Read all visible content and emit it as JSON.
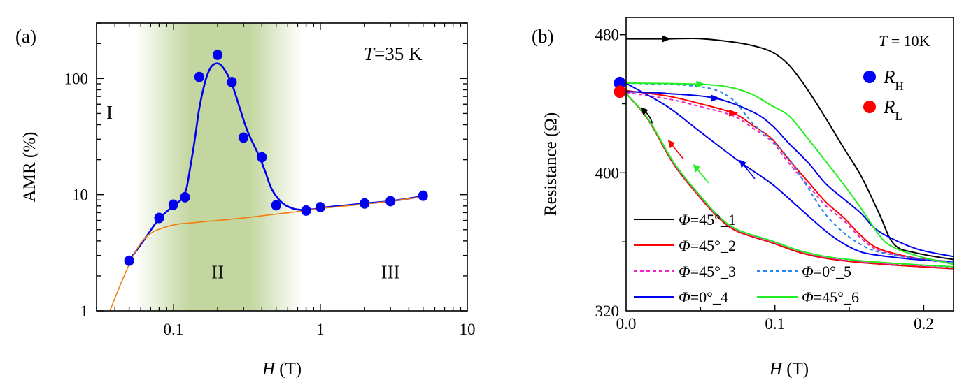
{
  "chart_data": [
    {
      "panel_label": "(a)",
      "type": "scatter",
      "title": "",
      "xlabel_italic": "H",
      "xlabel_unit": " (T)",
      "ylabel": "AMR (%)",
      "xscale": "log",
      "yscale": "log",
      "xlim": [
        0.03,
        10
      ],
      "ylim": [
        1,
        300
      ],
      "x_tick_labels": [
        {
          "value": 0.1,
          "label": "0.1"
        },
        {
          "value": 1,
          "label": "1"
        },
        {
          "value": 10,
          "label": "10"
        }
      ],
      "y_tick_labels": [
        {
          "value": 1,
          "label": "1"
        },
        {
          "value": 10,
          "label": "10"
        },
        {
          "value": 100,
          "label": "100"
        }
      ],
      "annotation": {
        "italic": "T",
        "rest": "=35 K"
      },
      "regions": [
        {
          "label": "I",
          "at": [
            0.035,
            45
          ]
        },
        {
          "label": "II",
          "at": [
            0.2,
            1.9
          ]
        },
        {
          "label": "III",
          "at": [
            3.0,
            1.9
          ]
        }
      ],
      "shaded_band": {
        "color": "#c3d69f",
        "x_fade_in": [
          0.055,
          0.13
        ],
        "x_solid": [
          0.13,
          0.33
        ],
        "x_fade_out": [
          0.33,
          0.75
        ]
      },
      "series": [
        {
          "name": "AMR data",
          "kind": "points",
          "color": "#0000ee",
          "x": [
            0.05,
            0.08,
            0.1,
            0.12,
            0.15,
            0.2,
            0.25,
            0.3,
            0.4,
            0.5,
            0.8,
            1.0,
            2.0,
            3.0,
            5.0
          ],
          "y": [
            2.7,
            6.3,
            8.2,
            9.5,
            103,
            160,
            93,
            31,
            21,
            8.1,
            7.3,
            7.8,
            8.4,
            8.8,
            9.8
          ]
        },
        {
          "name": "AMR fit",
          "kind": "line",
          "color": "#0000ee",
          "x": [
            0.05,
            0.065,
            0.08,
            0.1,
            0.112,
            0.122,
            0.13,
            0.14,
            0.15,
            0.165,
            0.18,
            0.2,
            0.22,
            0.25,
            0.28,
            0.32,
            0.38,
            0.42,
            0.47,
            0.55,
            0.65,
            0.75,
            0.9,
            1.0,
            1.5,
            2.0,
            3.0,
            5.0
          ],
          "y": [
            2.7,
            4.3,
            6.2,
            8.0,
            9.0,
            11,
            17,
            30,
            55,
            95,
            125,
            135,
            122,
            90,
            58,
            35,
            22,
            16,
            11,
            8.5,
            7.6,
            7.4,
            7.5,
            7.7,
            8.1,
            8.4,
            8.8,
            9.7
          ]
        },
        {
          "name": "Background fit",
          "kind": "line",
          "color": "#f07f10",
          "x": [
            0.037,
            0.042,
            0.047,
            0.052,
            0.058,
            0.065,
            0.073,
            0.082,
            0.095,
            0.11,
            0.13,
            0.16,
            0.2,
            0.3,
            0.5,
            0.8,
            1.0,
            2.0,
            3.0,
            5.0
          ],
          "y": [
            1.0,
            1.5,
            2.1,
            2.8,
            3.6,
            4.3,
            4.8,
            5.1,
            5.4,
            5.6,
            5.7,
            5.85,
            6.0,
            6.3,
            6.8,
            7.3,
            7.6,
            8.3,
            8.8,
            9.6
          ]
        }
      ]
    },
    {
      "panel_label": "(b)",
      "type": "line",
      "title": "",
      "xlabel_italic": "H",
      "xlabel_unit": " (T)",
      "ylabel": "Resistance (Ω)",
      "xlim": [
        0.0,
        0.22
      ],
      "ylim": [
        320,
        490
      ],
      "x_tick_labels": [
        {
          "value": 0.0,
          "label": "0.0"
        },
        {
          "value": 0.1,
          "label": "0.1"
        },
        {
          "value": 0.2,
          "label": "0.2"
        }
      ],
      "x_minor_ticks": [
        0.05,
        0.15
      ],
      "y_tick_labels": [
        {
          "value": 320,
          "label": "320"
        },
        {
          "value": 400,
          "label": "400"
        },
        {
          "value": 480,
          "label": "480"
        }
      ],
      "y_minor_ticks": [
        360,
        440
      ],
      "annotation": {
        "italic": "T",
        "rest": " = 10K"
      },
      "markers": [
        {
          "name": "R_H",
          "symbol": "R",
          "subscript": "H",
          "color": "#0000ff",
          "x": 0.0,
          "y": 452
        },
        {
          "name": "R_L",
          "symbol": "R",
          "subscript": "L",
          "color": "#ff0000",
          "x": 0.0,
          "y": 447
        }
      ],
      "legend": {
        "placement": "bottom-left",
        "entries": [
          {
            "label_italic": "Φ",
            "label_rest": "=45°_1",
            "series": "Φ=45°_1"
          },
          {
            "label_italic": "Φ",
            "label_rest": "=45°_2",
            "series": "Φ=45°_2"
          },
          {
            "label_italic": "Φ",
            "label_rest": "=45°_3",
            "series": "Φ=45°_3"
          },
          {
            "label_italic": "Φ",
            "label_rest": "=0°_4",
            "series": "Φ=0°_4"
          },
          {
            "label_italic": "Φ",
            "label_rest": "=0°_5",
            "series": "Φ=0°_5"
          },
          {
            "label_italic": "Φ",
            "label_rest": "=45°_6",
            "series": "Φ=45°_6"
          }
        ]
      },
      "series": [
        {
          "name": "Φ=45°_1",
          "color": "#000000",
          "dash": false,
          "segments": [
            {
              "direction": "forward",
              "x": [
                0.0,
                0.027,
                0.048,
                0.07,
                0.085,
                0.098,
                0.109,
                0.12,
                0.133,
                0.146,
                0.158,
                0.17,
                0.18,
                0.195,
                0.221
              ],
              "y": [
                477.6,
                477.6,
                477.8,
                476.0,
                473.7,
                470.0,
                462.8,
                450.6,
                433.3,
                414.7,
                398.0,
                376.5,
                358.6,
                353.5,
                349.6
              ]
            },
            {
              "direction": "return",
              "x": [
                0.221,
                0.19,
                0.158,
                0.134,
                0.116,
                0.098,
                0.075,
                0.062,
                0.049,
                0.032,
                0.015,
                0.0
              ],
              "y": [
                344.4,
                346.0,
                348.0,
                350.5,
                354.0,
                359.5,
                366.0,
                374.0,
                386.5,
                405.0,
                430.5,
                446.0
              ]
            }
          ]
        },
        {
          "name": "Φ=45°_2",
          "color": "#ff0000",
          "dash": false,
          "segments": [
            {
              "direction": "forward",
              "x": [
                0.0,
                0.027,
                0.048,
                0.072,
                0.085,
                0.098,
                0.109,
                0.123,
                0.134,
                0.146,
                0.158,
                0.17,
                0.195,
                0.221
              ],
              "y": [
                447.6,
                444.6,
                440.4,
                434.6,
                427.5,
                419.6,
                407.9,
                394.1,
                383.2,
                374.2,
                363.5,
                356.0,
                350.5,
                348.4
              ]
            },
            {
              "direction": "return",
              "x": [
                0.221,
                0.19,
                0.158,
                0.134,
                0.116,
                0.098,
                0.075,
                0.062,
                0.049,
                0.032,
                0.015,
                0.0
              ],
              "y": [
                344.4,
                346.0,
                348.0,
                350.5,
                354.0,
                359.5,
                366.0,
                374.0,
                386.5,
                405.0,
                430.5,
                446.0
              ]
            }
          ]
        },
        {
          "name": "Φ=45°_3",
          "color": "#ee22cc",
          "dash": true,
          "segments": [
            {
              "direction": "forward",
              "x": [
                0.0,
                0.027,
                0.048,
                0.072,
                0.085,
                0.098,
                0.109,
                0.123,
                0.134,
                0.146,
                0.158,
                0.17,
                0.195,
                0.221
              ],
              "y": [
                446.5,
                443.0,
                438.8,
                433.0,
                426.0,
                418.0,
                406.0,
                392.0,
                381.0,
                372.5,
                362.0,
                355.0,
                350.0,
                348.0
              ]
            },
            {
              "direction": "return",
              "x": [
                0.221,
                0.19,
                0.158,
                0.134,
                0.116,
                0.098,
                0.075,
                0.062,
                0.049,
                0.032,
                0.015,
                0.0
              ],
              "y": [
                345.0,
                346.5,
                348.5,
                351.0,
                354.5,
                360.0,
                366.5,
                374.5,
                387.0,
                405.5,
                431.0,
                446.0
              ]
            }
          ]
        },
        {
          "name": "Φ=0°_4",
          "color": "#0000ee",
          "dash": false,
          "segments": [
            {
              "direction": "forward",
              "x": [
                0.0,
                0.027,
                0.06,
                0.085,
                0.098,
                0.109,
                0.123,
                0.134,
                0.146,
                0.158,
                0.17,
                0.195,
                0.221
              ],
              "y": [
                447.0,
                446.0,
                443.2,
                435.3,
                427.5,
                417.4,
                405.2,
                393.8,
                385.0,
                376.4,
                366.0,
                356.0,
                351.3
              ]
            },
            {
              "direction": "return",
              "x": [
                0.221,
                0.195,
                0.172,
                0.158,
                0.146,
                0.134,
                0.116,
                0.098,
                0.075,
                0.049,
                0.027,
                0.0
              ],
              "y": [
                348.4,
                349.7,
                351.9,
                354.1,
                359.0,
                366.3,
                379.9,
                393.5,
                407.2,
                424.3,
                438.8,
                451.8
              ]
            }
          ]
        },
        {
          "name": "Φ=0°_5",
          "color": "#2288ee",
          "dash": true,
          "segments": [
            {
              "direction": "forward",
              "x": [
                0.0,
                0.049,
                0.07,
                0.085,
                0.098,
                0.109,
                0.12,
                0.133,
                0.146,
                0.158,
                0.17,
                0.195,
                0.221
              ],
              "y": [
                452.0,
                450.0,
                443.5,
                428.7,
                418.7,
                408.5,
                394.3,
                377.0,
                365.5,
                358.3,
                354.1,
                350.5,
                348.3
              ]
            }
          ]
        },
        {
          "name": "Φ=45°_6",
          "color": "#22ee22",
          "dash": false,
          "segments": [
            {
              "direction": "forward",
              "x": [
                0.0,
                0.049,
                0.07,
                0.085,
                0.098,
                0.109,
                0.12,
                0.133,
                0.146,
                0.158,
                0.17,
                0.178,
                0.195,
                0.221
              ],
              "y": [
                452.0,
                451.3,
                449.5,
                445.3,
                438.8,
                433.3,
                422.2,
                407.9,
                393.5,
                379.2,
                364.0,
                357.6,
                352.0,
                346.8
              ]
            },
            {
              "direction": "return",
              "x": [
                0.221,
                0.19,
                0.158,
                0.134,
                0.116,
                0.098,
                0.075,
                0.062,
                0.049,
                0.032,
                0.015,
                0.0
              ],
              "y": [
                345.5,
                347.0,
                349.0,
                351.5,
                355.0,
                360.5,
                367.0,
                375.0,
                387.5,
                406.0,
                431.0,
                446.0
              ]
            }
          ]
        }
      ],
      "direction_arrows": [
        {
          "color": "#000000",
          "x": 0.027,
          "y": 477.6,
          "dir": "right"
        },
        {
          "color": "#22ee22",
          "x": 0.05,
          "y": 451.3,
          "dir": "right"
        },
        {
          "color": "#0000ee",
          "x": 0.06,
          "y": 443.2,
          "dir": "right"
        },
        {
          "color": "#ff0000",
          "x": 0.072,
          "y": 434.6,
          "dir": "right"
        },
        {
          "color": "#0000ee",
          "x": 0.078,
          "y": 405.5,
          "dir": "up-left"
        },
        {
          "color": "#000000",
          "x": 0.012,
          "y": 436.0,
          "dir": "up-left-curve"
        },
        {
          "color": "#ff0000",
          "x": 0.03,
          "y": 417.0,
          "dir": "up-left"
        },
        {
          "color": "#22ee22",
          "x": 0.047,
          "y": 403.0,
          "dir": "up-left"
        }
      ]
    }
  ]
}
